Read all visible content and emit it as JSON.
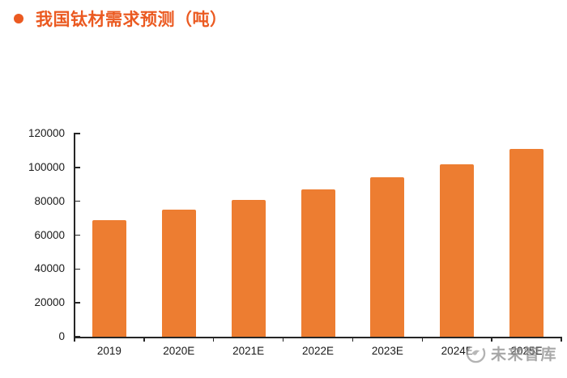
{
  "header": {
    "title": "我国钛材需求预测（吨）",
    "accent_color": "#EB5A21"
  },
  "chart_data": {
    "type": "bar",
    "title": "我国钛材需求预测（吨）",
    "categories": [
      "2019",
      "2020E",
      "2021E",
      "2022E",
      "2023E",
      "2024E",
      "2025E"
    ],
    "values": [
      69000,
      75000,
      81000,
      87000,
      94000,
      102000,
      111000
    ],
    "xlabel": "",
    "ylabel": "",
    "ylim": [
      0,
      120000
    ],
    "ytick_step": 20000,
    "ytick_labels": [
      "0",
      "20000",
      "40000",
      "60000",
      "80000",
      "100000",
      "120000"
    ],
    "bar_color": "#ED7D31",
    "grid": false,
    "legend_position": "none"
  },
  "watermark": {
    "logo_icon": "bird-circle-logo",
    "text": "未来智库"
  }
}
